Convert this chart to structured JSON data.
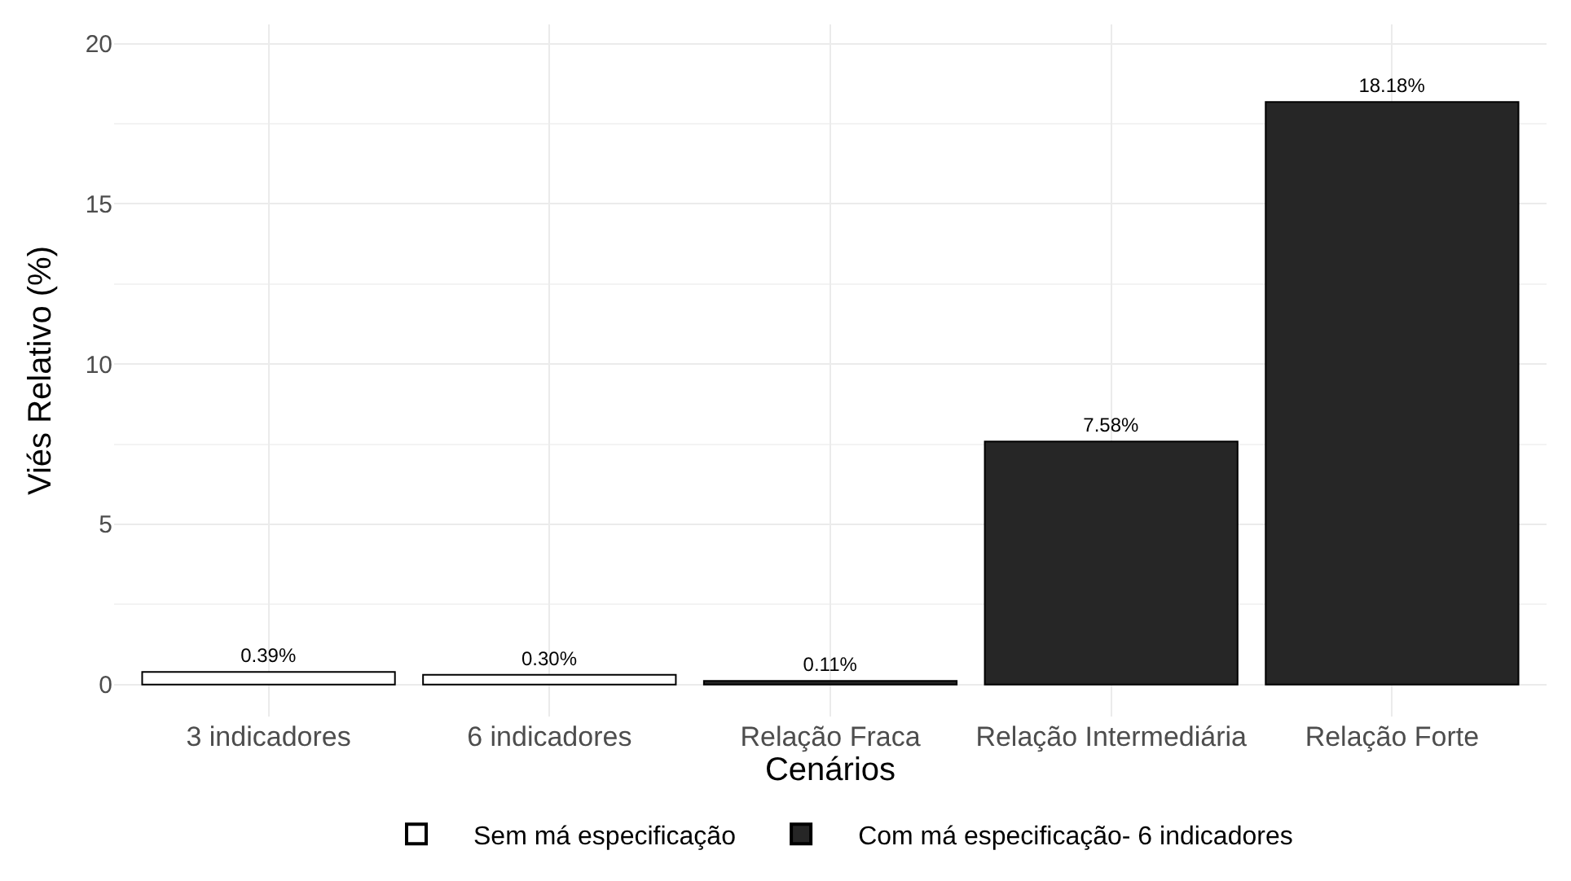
{
  "chart_data": {
    "type": "bar",
    "xlabel": "Cenários",
    "ylabel": "Viés Relativo (%)",
    "categories": [
      "3 indicadores",
      "6 indicadores",
      "Relação Fraca",
      "Relação Intermediária",
      "Relação Forte"
    ],
    "series": [
      {
        "name": "Sem má especificação",
        "color": "#ffffff",
        "values": [
          0.39,
          0.3,
          null,
          null,
          null
        ],
        "value_labels": [
          "0.39%",
          "0.30%",
          null,
          null,
          null
        ]
      },
      {
        "name": "Com má especificação- 6 indicadores",
        "color": "#262626",
        "values": [
          null,
          null,
          0.11,
          7.58,
          18.18
        ],
        "value_labels": [
          null,
          null,
          "0.11%",
          "7.58%",
          "18.18%"
        ]
      }
    ],
    "ylim": [
      -1,
      20.6
    ],
    "yticks": [
      0,
      5,
      10,
      15,
      20
    ],
    "grid": true,
    "legend": "bottom"
  }
}
